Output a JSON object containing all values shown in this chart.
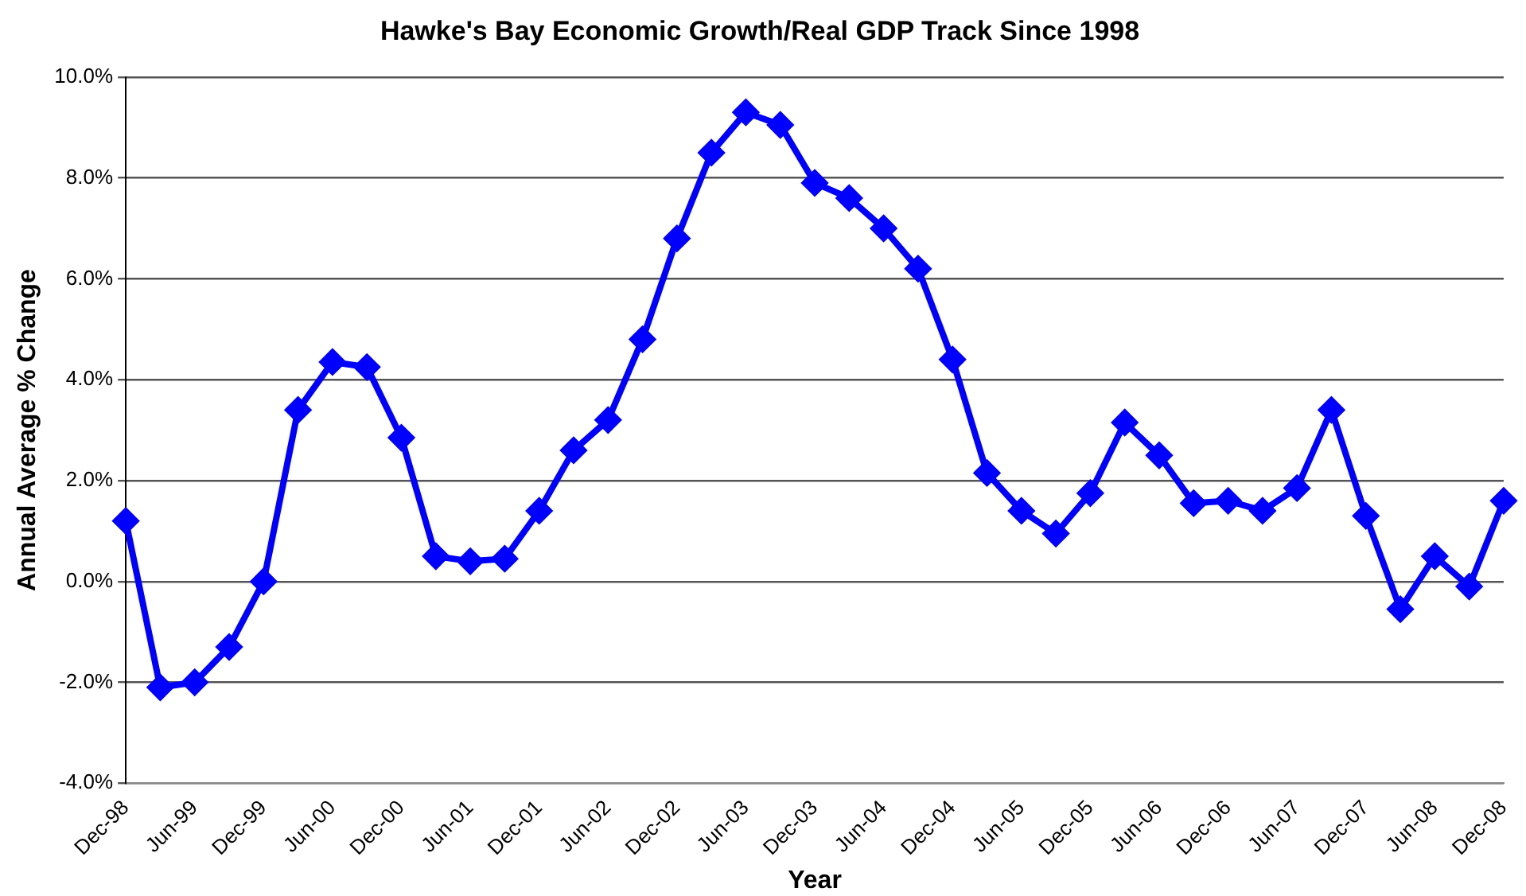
{
  "chart_data": {
    "type": "line",
    "title": "Hawke's Bay Economic Growth/Real GDP Track Since 1998",
    "xlabel": "Year",
    "ylabel": "Annual Average % Change",
    "categories": [
      "Dec-98",
      null,
      "Jun-99",
      null,
      "Dec-99",
      null,
      "Jun-00",
      null,
      "Dec-00",
      null,
      "Jun-01",
      null,
      "Dec-01",
      null,
      "Jun-02",
      null,
      "Dec-02",
      null,
      "Jun-03",
      null,
      "Dec-03",
      null,
      "Jun-04",
      null,
      "Dec-04",
      null,
      "Jun-05",
      null,
      "Dec-05",
      null,
      "Jun-06",
      null,
      "Dec-06",
      null,
      "Jun-07",
      null,
      "Dec-07",
      null,
      "Jun-08",
      null,
      "Dec-08"
    ],
    "series": [
      {
        "color": "#0000ff",
        "values": [
          1.2,
          -2.1,
          -2.0,
          -1.3,
          0.0,
          3.4,
          4.35,
          4.25,
          2.85,
          0.5,
          0.4,
          0.45,
          1.4,
          2.6,
          3.2,
          4.8,
          6.8,
          8.5,
          9.3,
          9.05,
          7.9,
          7.6,
          7.0,
          6.2,
          4.4,
          2.15,
          1.4,
          0.95,
          1.75,
          3.15,
          2.5,
          1.55,
          1.6,
          1.4,
          1.85,
          3.4,
          1.3,
          -0.55,
          0.5,
          -0.1,
          1.6
        ]
      }
    ],
    "ylim": [
      -4,
      10
    ],
    "yticks": [
      {
        "value": -4,
        "label": "-4.0%"
      },
      {
        "value": -2,
        "label": "-2.0%"
      },
      {
        "value": 0,
        "label": "0.0%"
      },
      {
        "value": 2,
        "label": "2.0%"
      },
      {
        "value": 4,
        "label": "4.0%"
      },
      {
        "value": 6,
        "label": "6.0%"
      },
      {
        "value": 8,
        "label": "8.0%"
      },
      {
        "value": 10,
        "label": "10.0%"
      }
    ],
    "grid": "y",
    "legend": false,
    "marker": "diamond",
    "line_style": "solid"
  }
}
